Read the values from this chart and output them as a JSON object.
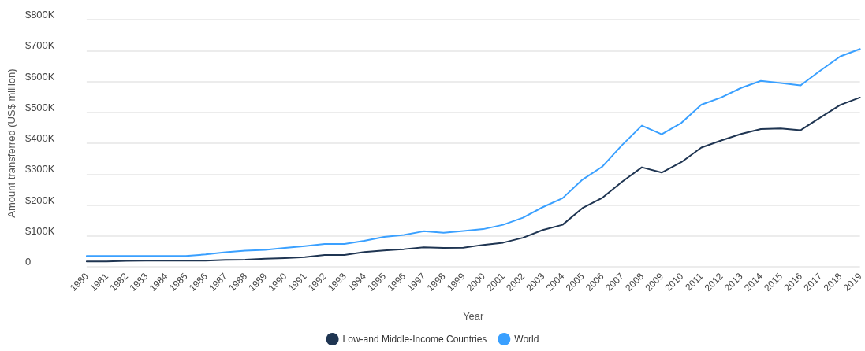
{
  "chart_data": {
    "type": "line",
    "xlabel": "Year",
    "ylabel": "Amount transferred (US$ million)",
    "categories": [
      "1980",
      "1981",
      "1982",
      "1983",
      "1984",
      "1985",
      "1986",
      "1987",
      "1988",
      "1989",
      "1990",
      "1991",
      "1992",
      "1993",
      "1994",
      "1995",
      "1996",
      "1997",
      "1998",
      "1999",
      "2000",
      "2001",
      "2002",
      "2003",
      "2004",
      "2005",
      "2006",
      "2007",
      "2008",
      "2009",
      "2010",
      "2011",
      "2012",
      "2013",
      "2014",
      "2015",
      "2016",
      "2017",
      "2018",
      "2019"
    ],
    "series": [
      {
        "name": "Low-and Middle-Income Countries",
        "color": "#1f3552",
        "values": [
          17000,
          17000,
          19000,
          20000,
          20000,
          20000,
          20000,
          22000,
          23000,
          26000,
          28000,
          31000,
          38000,
          38000,
          48000,
          53000,
          57000,
          63000,
          61000,
          62000,
          71000,
          78000,
          94000,
          119000,
          136000,
          190000,
          223000,
          275000,
          322000,
          305000,
          339000,
          386000,
          409000,
          430000,
          446000,
          448000,
          442000,
          483000,
          524000,
          548000
        ]
      },
      {
        "name": "World",
        "color": "#3aa0ff",
        "values": [
          35000,
          35000,
          35000,
          35000,
          35000,
          35000,
          40000,
          47000,
          52000,
          55000,
          61000,
          67000,
          74000,
          74000,
          84000,
          97000,
          103000,
          115000,
          110000,
          116000,
          122000,
          136000,
          159000,
          193000,
          222000,
          282000,
          324000,
          394000,
          457000,
          429000,
          466000,
          525000,
          548000,
          579000,
          602000,
          595000,
          587000,
          635000,
          681000,
          705000
        ]
      }
    ],
    "ylim": [
      0,
      800000
    ],
    "yticks": [
      {
        "value": 0,
        "label": "0"
      },
      {
        "value": 100000,
        "label": "$100K"
      },
      {
        "value": 200000,
        "label": "$200K"
      },
      {
        "value": 300000,
        "label": "$300K"
      },
      {
        "value": 400000,
        "label": "$400K"
      },
      {
        "value": 500000,
        "label": "$500K"
      },
      {
        "value": 600000,
        "label": "$600K"
      },
      {
        "value": 700000,
        "label": "$700K"
      },
      {
        "value": 800000,
        "label": "$800K"
      }
    ],
    "grid": "y",
    "legend": "bottom",
    "marker": "none",
    "line_style": "solid"
  }
}
